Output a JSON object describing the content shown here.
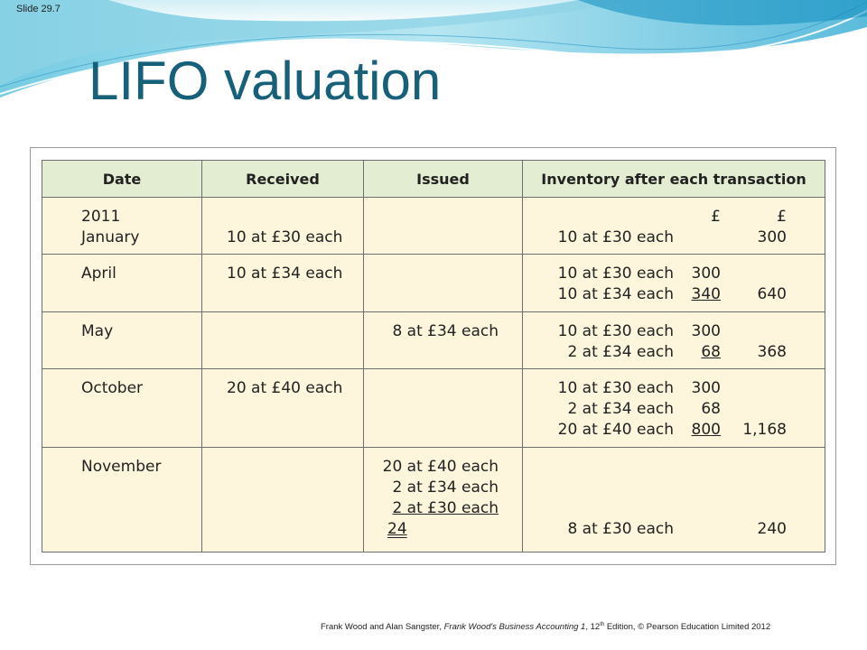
{
  "slide_number": "Slide 29.7",
  "title": "LIFO valuation",
  "table": {
    "headers": [
      "Date",
      "Received",
      "Issued",
      "Inventory after each transaction"
    ],
    "currency_amount": "£",
    "currency_total": "£",
    "rows": [
      {
        "date": [
          "2011",
          "January"
        ],
        "received": "10 at £30 each",
        "issued": [],
        "inventory": [
          {
            "desc": "10 at £30 each",
            "amount": "",
            "total": "300"
          }
        ]
      },
      {
        "date": [
          "April"
        ],
        "received": "10 at £34 each",
        "issued": [],
        "inventory": [
          {
            "desc": "10 at £30 each",
            "amount": "300",
            "total": ""
          },
          {
            "desc": "10 at £34 each",
            "amount": "340",
            "total": "640"
          }
        ]
      },
      {
        "date": [
          "May"
        ],
        "received": "",
        "issued": [
          "8 at £34 each"
        ],
        "inventory": [
          {
            "desc": "10 at £30 each",
            "amount": "300",
            "total": ""
          },
          {
            "desc": "2 at £34 each",
            "amount": "68",
            "total": "368"
          }
        ]
      },
      {
        "date": [
          "October"
        ],
        "received": "20 at £40 each",
        "issued": [],
        "inventory": [
          {
            "desc": "10 at £30 each",
            "amount": "300",
            "total": ""
          },
          {
            "desc": "2 at £34 each",
            "amount": "68",
            "total": ""
          },
          {
            "desc": "20 at £40 each",
            "amount": "800",
            "total": "1,168"
          }
        ]
      },
      {
        "date": [
          "November"
        ],
        "received": "",
        "issued": [
          "20 at £40 each",
          "2 at £34 each",
          "2 at £30 each",
          "24"
        ],
        "inventory": [
          {
            "desc": "8 at £30 each",
            "amount": "",
            "total": "240"
          }
        ]
      }
    ]
  },
  "footer": {
    "authors": "Frank Wood and Alan Sangster, ",
    "book": "Frank Wood's Business Accounting 1",
    "edition_pre": ", 12",
    "edition_sup": "th",
    "rest": " Edition, © Pearson Education Limited 2012"
  },
  "colors": {
    "title": "#17607a",
    "header_bg": "#e3edd1",
    "cell_bg": "#fdf6dc"
  }
}
